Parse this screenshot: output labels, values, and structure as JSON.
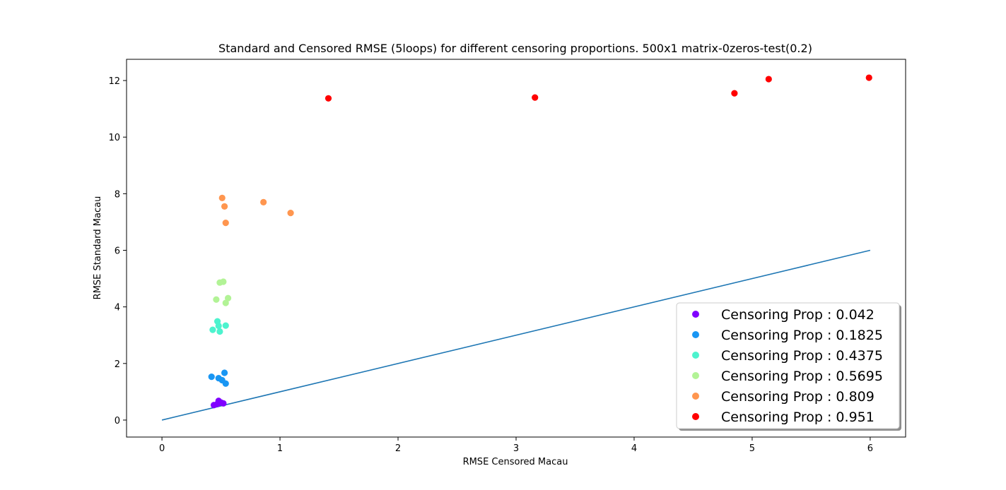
{
  "chart_data": {
    "type": "scatter",
    "title": "Standard and Censored RMSE (5loops) for different censoring proportions. 500x1 matrix-0zeros-test(0.2)",
    "xlabel": "RMSE Censored Macau",
    "ylabel": "RMSE Standard Macau",
    "xlim": [
      -0.3,
      6.3
    ],
    "ylim": [
      -0.6,
      12.75
    ],
    "x_ticks": [
      0,
      1,
      2,
      3,
      4,
      5,
      6
    ],
    "y_ticks": [
      0,
      2,
      4,
      6,
      8,
      10,
      12
    ],
    "grid": false,
    "legend_position": "bottom-right",
    "series": [
      {
        "name": "Censoring Prop : 0.042",
        "color": "#8000ff",
        "points": [
          [
            0.44,
            0.53
          ],
          [
            0.47,
            0.57
          ],
          [
            0.48,
            0.68
          ],
          [
            0.5,
            0.62
          ],
          [
            0.52,
            0.59
          ]
        ]
      },
      {
        "name": "Censoring Prop : 0.1825",
        "color": "#1996f3",
        "points": [
          [
            0.42,
            1.53
          ],
          [
            0.48,
            1.48
          ],
          [
            0.51,
            1.41
          ],
          [
            0.53,
            1.67
          ],
          [
            0.54,
            1.29
          ]
        ]
      },
      {
        "name": "Censoring Prop : 0.4375",
        "color": "#4df3ce",
        "points": [
          [
            0.43,
            3.19
          ],
          [
            0.47,
            3.49
          ],
          [
            0.48,
            3.33
          ],
          [
            0.49,
            3.13
          ],
          [
            0.54,
            3.34
          ]
        ]
      },
      {
        "name": "Censoring Prop : 0.5695",
        "color": "#b2f396",
        "points": [
          [
            0.46,
            4.26
          ],
          [
            0.49,
            4.86
          ],
          [
            0.52,
            4.89
          ],
          [
            0.54,
            4.14
          ],
          [
            0.56,
            4.31
          ]
        ]
      },
      {
        "name": "Censoring Prop : 0.809",
        "color": "#ff964f",
        "points": [
          [
            0.51,
            7.85
          ],
          [
            0.53,
            7.55
          ],
          [
            0.54,
            6.97
          ],
          [
            0.86,
            7.7
          ],
          [
            1.09,
            7.32
          ]
        ]
      },
      {
        "name": "Censoring Prop : 0.951",
        "color": "#ff0000",
        "points": [
          [
            1.41,
            11.37
          ],
          [
            3.16,
            11.4
          ],
          [
            4.85,
            11.55
          ],
          [
            5.14,
            12.05
          ],
          [
            5.99,
            12.1
          ]
        ]
      }
    ],
    "reference_line": {
      "color": "#1f77b4",
      "points": [
        [
          0,
          0
        ],
        [
          6,
          6
        ]
      ]
    }
  }
}
